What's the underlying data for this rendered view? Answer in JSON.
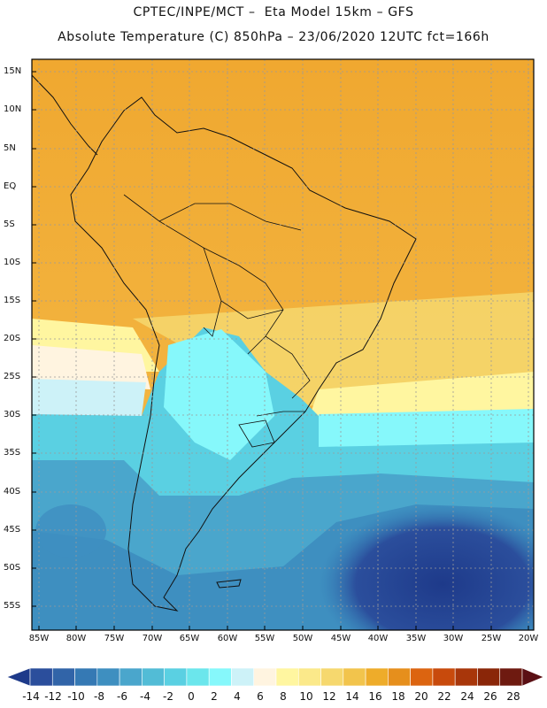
{
  "header": {
    "line1": "CPTEC/INPE/MCT –  Eta Model 15km – GFS",
    "line2": "Absolute Temperature (C) 850hPa – 23/06/2020 12UTC fct=166h"
  },
  "map": {
    "lat_labels": [
      "15N",
      "10N",
      "5N",
      "EQ",
      "5S",
      "10S",
      "15S",
      "20S",
      "25S",
      "30S",
      "35S",
      "40S",
      "45S",
      "50S",
      "55S"
    ],
    "lon_labels": [
      "85W",
      "80W",
      "75W",
      "70W",
      "65W",
      "60W",
      "55W",
      "50W",
      "45W",
      "40W",
      "35W",
      "30W",
      "25W",
      "20W"
    ]
  },
  "legend": {
    "labels": [
      "-14",
      "-12",
      "-10",
      "-8",
      "-6",
      "-4",
      "-2",
      "0",
      "2",
      "4",
      "6",
      "8",
      "10",
      "12",
      "14",
      "16",
      "18",
      "20",
      "22",
      "24",
      "26",
      "28"
    ],
    "colors": [
      "#1e3a8a",
      "#2b4e9c",
      "#3164a8",
      "#3579b4",
      "#3e8fc0",
      "#4aa6cc",
      "#52bcd6",
      "#5ad0e2",
      "#6be6ec",
      "#86f8fb",
      "#cdf2f8",
      "#fff4e0",
      "#fff6a0",
      "#fbe98a",
      "#f6d86e",
      "#f2c44c",
      "#eeac2a",
      "#e68f1c",
      "#dc6410",
      "#c84a0c",
      "#a8360a",
      "#8a2608",
      "#6e1a10",
      "#5a0f14"
    ]
  }
}
